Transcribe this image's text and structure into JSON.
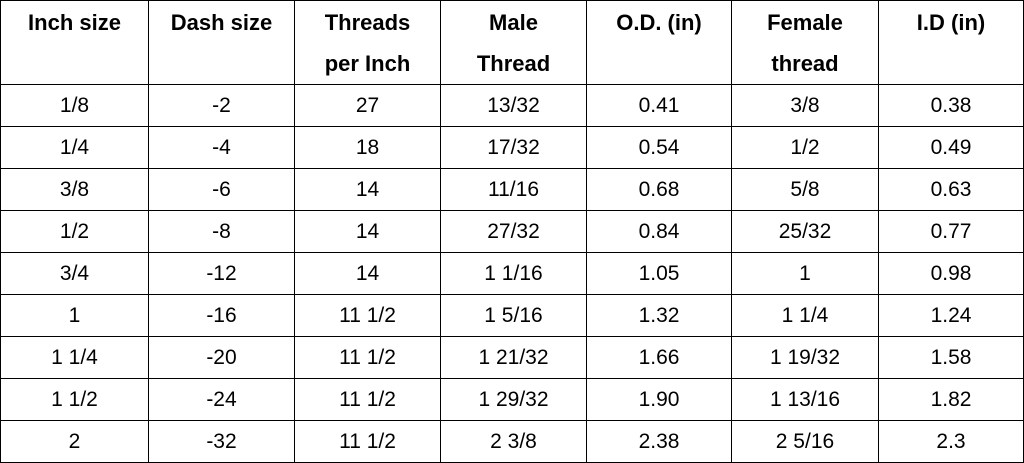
{
  "table": {
    "headers": [
      [
        "Inch size"
      ],
      [
        "Dash size"
      ],
      [
        "Threads",
        "per Inch"
      ],
      [
        "Male",
        "Thread"
      ],
      [
        "O.D. (in)"
      ],
      [
        "Female",
        "thread"
      ],
      [
        "I.D (in)"
      ]
    ],
    "rows": [
      [
        "1/8",
        "-2",
        "27",
        "13/32",
        "0.41",
        "3/8",
        "0.38"
      ],
      [
        "1/4",
        "-4",
        "18",
        "17/32",
        "0.54",
        "1/2",
        "0.49"
      ],
      [
        "3/8",
        "-6",
        "14",
        "11/16",
        "0.68",
        "5/8",
        "0.63"
      ],
      [
        "1/2",
        "-8",
        "14",
        "27/32",
        "0.84",
        "25/32",
        "0.77"
      ],
      [
        "3/4",
        "-12",
        "14",
        "1 1/16",
        "1.05",
        "1",
        "0.98"
      ],
      [
        "1",
        "-16",
        "11 1/2",
        "1 5/16",
        "1.32",
        "1 1/4",
        "1.24"
      ],
      [
        "1 1/4",
        "-20",
        "11 1/2",
        "1 21/32",
        "1.66",
        "1 19/32",
        "1.58"
      ],
      [
        "1 1/2",
        "-24",
        "11 1/2",
        "1 29/32",
        "1.90",
        "1 13/16",
        "1.82"
      ],
      [
        "2",
        "-32",
        "11 1/2",
        "2 3/8",
        "2.38",
        "2 5/16",
        "2.3"
      ]
    ]
  }
}
